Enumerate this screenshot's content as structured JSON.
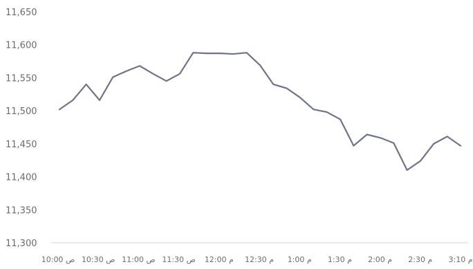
{
  "chart_data": {
    "type": "line",
    "title": "",
    "xlabel": "",
    "ylabel": "",
    "ylim": [
      11300,
      11650
    ],
    "y_ticks": [
      11300,
      11350,
      11400,
      11450,
      11500,
      11550,
      11600,
      11650
    ],
    "y_tick_labels": [
      "11,300",
      "11,350",
      "11,400",
      "11,450",
      "11,500",
      "11,550",
      "11,600",
      "11,650"
    ],
    "x_tick_labels": [
      "10:00 ص",
      "10:30 ص",
      "11:00 ص",
      "11:30 ص",
      "12:00 م",
      "12:30 م",
      "1:00 م",
      "1:30 م",
      "2:00 م",
      "2:30 م",
      "3:10 م"
    ],
    "grid": false,
    "legend": "none",
    "line_color": "#6e7488",
    "series": [
      {
        "values": [
          11502,
          11516,
          11540,
          11516,
          11551,
          11560,
          11568,
          11556,
          11545,
          11556,
          11588,
          11587,
          11587,
          11586,
          11588,
          11569,
          11540,
          11534,
          11520,
          11502,
          11498,
          11487,
          11447,
          11464,
          11459,
          11451,
          11410,
          11424,
          11450,
          11461,
          11447
        ]
      }
    ]
  }
}
